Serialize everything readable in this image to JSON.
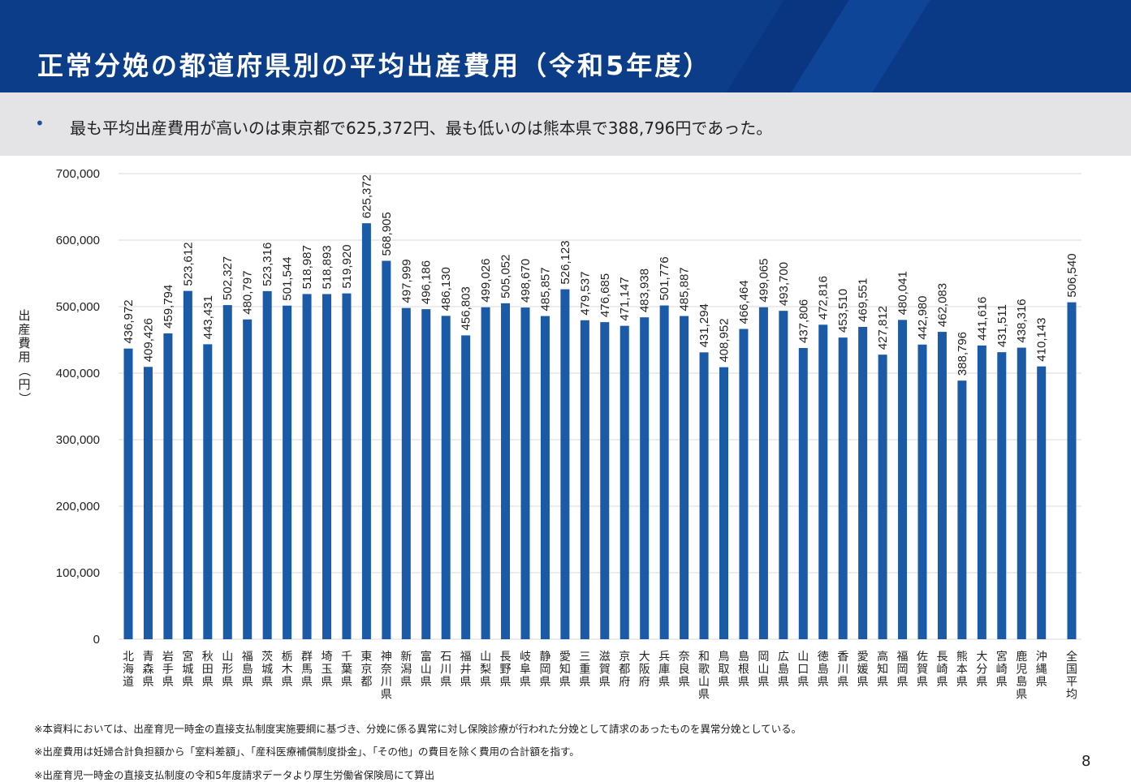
{
  "header": {
    "title": "正常分娩の都道府県別の平均出産費用（令和5年度）"
  },
  "summary": {
    "bullet": "•",
    "text": "最も平均出産費用が高いのは東京都で625,372円、最も低いのは熊本県で388,796円であった。"
  },
  "chart_data": {
    "type": "bar",
    "ylabel": "出産費用（円）",
    "ylim": [
      0,
      700000
    ],
    "yticks": [
      0,
      100000,
      200000,
      300000,
      400000,
      500000,
      600000,
      700000
    ],
    "ytick_labels": [
      "0",
      "100,000",
      "200,000",
      "300,000",
      "400,000",
      "500,000",
      "600,000",
      "700,000"
    ],
    "grid": true,
    "bar_color": "#1a5aa6",
    "categories": [
      "北海道",
      "青森県",
      "岩手県",
      "宮城県",
      "秋田県",
      "山形県",
      "福島県",
      "茨城県",
      "栃木県",
      "群馬県",
      "埼玉県",
      "千葉県",
      "東京都",
      "神奈川県",
      "新潟県",
      "富山県",
      "石川県",
      "福井県",
      "山梨県",
      "長野県",
      "岐阜県",
      "静岡県",
      "愛知県",
      "三重県",
      "滋賀県",
      "京都府",
      "大阪府",
      "兵庫県",
      "奈良県",
      "和歌山県",
      "鳥取県",
      "島根県",
      "岡山県",
      "広島県",
      "山口県",
      "徳島県",
      "香川県",
      "愛媛県",
      "高知県",
      "福岡県",
      "佐賀県",
      "長崎県",
      "熊本県",
      "大分県",
      "宮崎県",
      "鹿児島県",
      "沖縄県",
      "全国平均"
    ],
    "values": [
      436972,
      409426,
      459794,
      523612,
      443431,
      502327,
      480797,
      523316,
      501544,
      518987,
      518893,
      519920,
      625372,
      568905,
      497999,
      496186,
      486130,
      456803,
      499026,
      505052,
      498670,
      485857,
      526123,
      479537,
      476685,
      471147,
      483938,
      501776,
      485887,
      431294,
      408952,
      466464,
      499065,
      493700,
      437806,
      472816,
      453510,
      469551,
      427812,
      480041,
      442980,
      462083,
      388796,
      441616,
      431511,
      438316,
      410143,
      506540
    ],
    "value_labels": [
      "436,972",
      "409,426",
      "459,794",
      "523,612",
      "443,431",
      "502,327",
      "480,797",
      "523,316",
      "501,544",
      "518,987",
      "518,893",
      "519,920",
      "625,372",
      "568,905",
      "497,999",
      "496,186",
      "486,130",
      "456,803",
      "499,026",
      "505,052",
      "498,670",
      "485,857",
      "526,123",
      "479,537",
      "476,685",
      "471,147",
      "483,938",
      "501,776",
      "485,887",
      "431,294",
      "408,952",
      "466,464",
      "499,065",
      "493,700",
      "437,806",
      "472,816",
      "453,510",
      "469,551",
      "427,812",
      "480,041",
      "442,980",
      "462,083",
      "388,796",
      "441,616",
      "431,511",
      "438,316",
      "410,143",
      "506,540"
    ]
  },
  "notes": [
    "※本資料においては、出産育児一時金の直接支払制度実施要綱に基づき、分娩に係る異常に対し保険診療が行われた分娩として請求のあったものを異常分娩としている。",
    "※出産費用は妊婦合計負担額から「室料差額」、「産科医療補償制度掛金」、「その他」の費目を除く費用の合計額を指す。",
    "※出産育児一時金の直接支払制度の令和5年度請求データより厚生労働省保険局にて算出"
  ],
  "page_number": "8"
}
